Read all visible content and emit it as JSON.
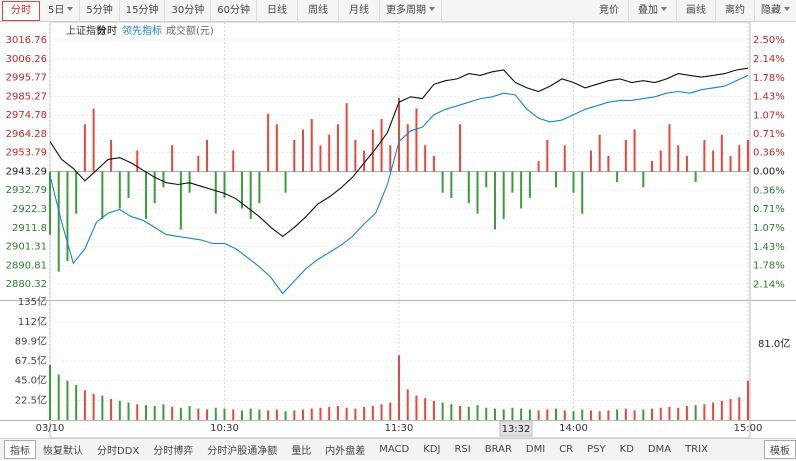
{
  "toolbar": {
    "periods": [
      "分时",
      "5日",
      "5分钟",
      "15分钟",
      "30分钟",
      "60分钟",
      "日线",
      "周线",
      "月线",
      "更多周期"
    ],
    "tools": [
      "竞价",
      "叠加",
      "画线",
      "离约",
      "隐藏"
    ]
  },
  "tabs": [
    "指标",
    "恢复默认",
    "分时DDX",
    "分时博弈",
    "分时沪股通净额",
    "量比",
    "内外盘差",
    "MACD",
    "KDJ",
    "RSI",
    "BRAR",
    "DMI",
    "CR",
    "PSY",
    "KD",
    "DMA",
    "TRIX",
    "模板"
  ],
  "chart_data": [
    {
      "type": "line",
      "title": "上证指数",
      "x": [
        0,
        4,
        8,
        12,
        16,
        20,
        24,
        28,
        32,
        36,
        40,
        44,
        48,
        52,
        56,
        60,
        64,
        68,
        72,
        76,
        80,
        84,
        88,
        92,
        96,
        100,
        104,
        108,
        112,
        116,
        120,
        124,
        128,
        132,
        136,
        140,
        144,
        148,
        152,
        156,
        160,
        164,
        168,
        172,
        176,
        180,
        184,
        188,
        192,
        196,
        200,
        204,
        208,
        212,
        216,
        220,
        224,
        228,
        232,
        236,
        240
      ],
      "series": [
        {
          "name": "分时",
          "color": "#111111",
          "values": [
            2960,
            2950,
            2945,
            2938,
            2944,
            2950,
            2951,
            2948,
            2944,
            2940,
            2937,
            2936,
            2937,
            2935,
            2933,
            2931,
            2928,
            2923,
            2918,
            2912,
            2907,
            2912,
            2918,
            2925,
            2929,
            2934,
            2940,
            2948,
            2956,
            2965,
            2982,
            2985,
            2984,
            2992,
            2994,
            2995,
            2998,
            2997,
            2999,
            3000,
            2993,
            2990,
            2988,
            2991,
            2995,
            2993,
            2990,
            2992,
            2994,
            2995,
            2993,
            2994,
            2993,
            2995,
            2998,
            2997,
            2996,
            2997,
            2998,
            3000,
            3001
          ]
        },
        {
          "name": "领先指标",
          "color": "#1f82d2",
          "values": [
            2941,
            2915,
            2892,
            2900,
            2915,
            2920,
            2922,
            2918,
            2916,
            2912,
            2908,
            2907,
            2906,
            2905,
            2903,
            2903,
            2900,
            2895,
            2890,
            2884,
            2875,
            2882,
            2889,
            2894,
            2898,
            2902,
            2907,
            2914,
            2920,
            2936,
            2960,
            2966,
            2968,
            2975,
            2978,
            2980,
            2982,
            2984,
            2985,
            2987,
            2986,
            2978,
            2973,
            2971,
            2972,
            2975,
            2978,
            2980,
            2982,
            2983,
            2983,
            2984,
            2985,
            2987,
            2988,
            2987,
            2989,
            2990,
            2991,
            2994,
            2997
          ]
        }
      ],
      "bar_series": {
        "axis": "y2",
        "up_color": "#e8473f",
        "down_color": "#3e9a3e",
        "x": [
          0,
          3,
          6,
          9,
          12,
          15,
          18,
          21,
          24,
          27,
          30,
          33,
          36,
          39,
          42,
          45,
          48,
          51,
          54,
          57,
          60,
          63,
          66,
          69,
          72,
          75,
          78,
          81,
          84,
          87,
          90,
          93,
          96,
          99,
          102,
          105,
          108,
          111,
          114,
          117,
          120,
          123,
          126,
          129,
          132,
          135,
          138,
          141,
          144,
          147,
          150,
          153,
          156,
          159,
          162,
          165,
          168,
          171,
          174,
          177,
          180,
          183,
          186,
          189,
          192,
          195,
          198,
          201,
          204,
          207,
          210,
          213,
          216,
          219,
          222,
          225,
          228,
          231,
          234,
          237,
          240
        ],
        "values": [
          -1.2,
          -1.9,
          -1.7,
          -0.8,
          0.9,
          1.2,
          -0.9,
          0.6,
          -0.7,
          -0.5,
          0.4,
          -0.9,
          -0.6,
          -0.3,
          0.5,
          -1.1,
          -0.4,
          0.3,
          0.6,
          -0.8,
          -0.5,
          0.4,
          -0.7,
          -0.9,
          -0.6,
          1.1,
          0.9,
          -0.4,
          0.6,
          0.8,
          1.0,
          0.5,
          0.7,
          0.9,
          1.3,
          0.6,
          0.4,
          0.8,
          1.0,
          0.5,
          1.4,
          0.9,
          1.2,
          0.5,
          0.3,
          -0.4,
          -0.5,
          0.9,
          -0.6,
          -0.8,
          -0.3,
          -1.1,
          -0.9,
          -0.4,
          -0.7,
          -0.5,
          0.2,
          0.6,
          -0.3,
          0.5,
          -0.4,
          -0.8,
          0.4,
          0.7,
          0.3,
          -0.2,
          0.6,
          0.8,
          -0.3,
          0.2,
          0.4,
          0.9,
          0.5,
          0.3,
          -0.2,
          0.6,
          0.4,
          0.7,
          0.3,
          0.5,
          0.6
        ]
      },
      "xlim": [
        0,
        240
      ],
      "ylim": [
        2872,
        3016.76
      ],
      "yticks": [
        3016.76,
        3006.26,
        2995.77,
        2985.27,
        2974.78,
        2964.28,
        2953.79,
        2943.29,
        2932.79,
        2922.3,
        2911.8,
        2901.31,
        2890.81,
        2880.32
      ],
      "y2lim": [
        -2.42,
        2.5
      ],
      "y2ticks": [
        {
          "value": 2.5,
          "label": "2.50%"
        },
        {
          "value": 2.14,
          "label": "2.14%"
        },
        {
          "value": 1.78,
          "label": "1.78%"
        },
        {
          "value": 1.43,
          "label": "1.43%"
        },
        {
          "value": 1.07,
          "label": "1.07%"
        },
        {
          "value": 0.71,
          "label": "0.71%"
        },
        {
          "value": 0.36,
          "label": "0.36%"
        },
        {
          "value": 0,
          "label": "0.00%"
        },
        {
          "value": -0.36,
          "label": "0.36%"
        },
        {
          "value": -0.71,
          "label": "0.71%"
        },
        {
          "value": -1.07,
          "label": "1.07%"
        },
        {
          "value": -1.43,
          "label": "1.43%"
        },
        {
          "value": -1.78,
          "label": "1.78%"
        },
        {
          "value": -2.14,
          "label": "2.14%"
        }
      ],
      "grid": true
    },
    {
      "type": "bar",
      "title": "成交额(元)",
      "x": [
        0,
        3,
        6,
        9,
        12,
        15,
        18,
        21,
        24,
        27,
        30,
        33,
        36,
        39,
        42,
        45,
        48,
        51,
        54,
        57,
        60,
        63,
        66,
        69,
        72,
        75,
        78,
        81,
        84,
        87,
        90,
        93,
        96,
        99,
        102,
        105,
        108,
        111,
        114,
        117,
        120,
        123,
        126,
        129,
        132,
        135,
        138,
        141,
        144,
        147,
        150,
        153,
        156,
        159,
        162,
        165,
        168,
        171,
        174,
        177,
        180,
        183,
        186,
        189,
        192,
        195,
        198,
        201,
        204,
        207,
        210,
        213,
        216,
        219,
        222,
        225,
        228,
        231,
        234,
        237,
        240
      ],
      "values": [
        63,
        52,
        45,
        40,
        34,
        30,
        28,
        24,
        22,
        20,
        18,
        17,
        16,
        18,
        15,
        14,
        16,
        13,
        12,
        14,
        13,
        12,
        11,
        13,
        12,
        11,
        12,
        10,
        11,
        12,
        13,
        14,
        15,
        16,
        14,
        13,
        15,
        16,
        18,
        20,
        74,
        35,
        28,
        25,
        22,
        20,
        18,
        16,
        15,
        17,
        14,
        13,
        12,
        14,
        13,
        12,
        11,
        12,
        13,
        11,
        10,
        12,
        11,
        10,
        11,
        12,
        13,
        11,
        12,
        13,
        14,
        15,
        14,
        16,
        17,
        18,
        20,
        22,
        24,
        26,
        45
      ],
      "xlim": [
        0,
        240
      ],
      "ylim": [
        0,
        135
      ],
      "yticks": [
        {
          "value": 135,
          "label": "135亿"
        },
        {
          "value": 112,
          "label": "112亿"
        },
        {
          "value": 89.9,
          "label": "89.9亿"
        },
        {
          "value": 67.5,
          "label": "67.5亿"
        },
        {
          "value": 45.0,
          "label": "45.0亿"
        },
        {
          "value": 22.5,
          "label": "22.5亿"
        }
      ],
      "xticks": [
        {
          "value": 0,
          "label": "03/10"
        },
        {
          "value": 60,
          "label": "10:30"
        },
        {
          "value": 120,
          "label": "11:30"
        },
        {
          "value": 180,
          "label": "14:00"
        },
        {
          "value": 240,
          "label": "15:00"
        }
      ],
      "readout": "81.0亿",
      "cursor_label": "13:32",
      "grid": true
    }
  ]
}
